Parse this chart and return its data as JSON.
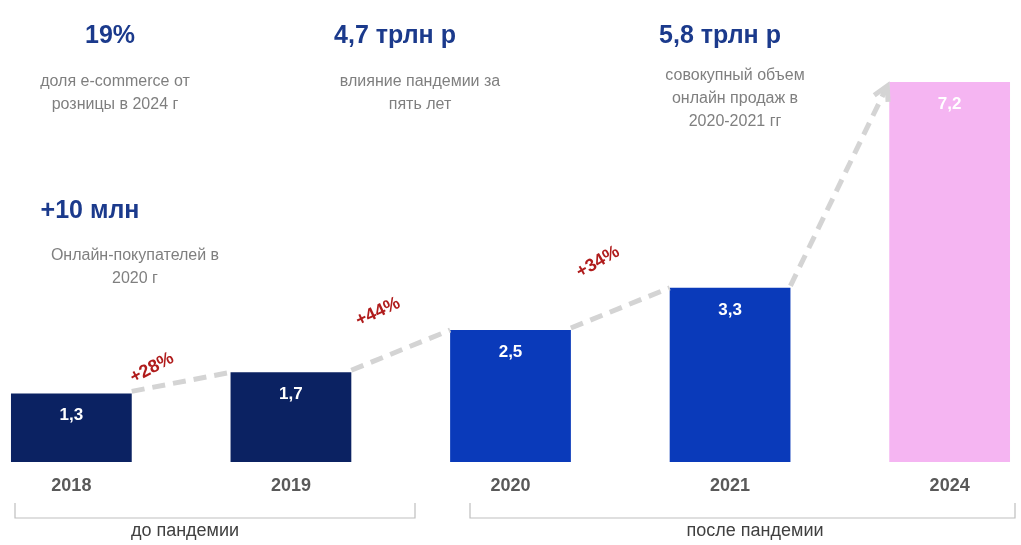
{
  "chart_data": {
    "type": "bar",
    "categories": [
      "2018",
      "2019",
      "2020",
      "2021",
      "2024"
    ],
    "values": [
      1.3,
      1.7,
      2.5,
      3.3,
      7.2
    ],
    "colors": [
      "#0b2262",
      "#0b2262",
      "#0a3aba",
      "#0a3aba",
      "#f5b5f2"
    ],
    "value_labels": [
      "1,3",
      "1,7",
      "2,5",
      "3,3",
      "7,2"
    ],
    "annotations": [
      "19%",
      "доля e-commerce от розницы в 2024 г",
      "4,7 трлн р",
      "влияние пандемии за пять лет",
      "5,8 трлн р",
      "совокупный объем онлайн продаж в 2020-2021 гг",
      "+10  млн",
      "Онлайн-покупателей в 2020 г",
      "+28%",
      "+44%",
      "+34%",
      "до пандемии",
      "после пандемии"
    ]
  }
}
